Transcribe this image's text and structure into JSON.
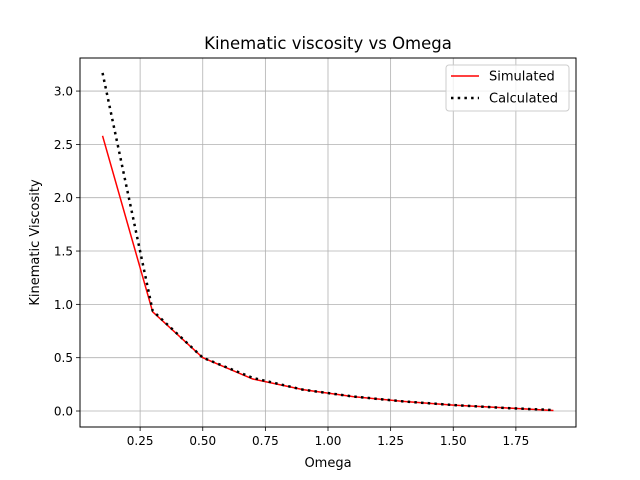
{
  "chart_data": {
    "type": "line",
    "title": "Kinematic viscosity vs Omega",
    "xlabel": "Omega",
    "ylabel": "Kinematic Viscosity",
    "xlim": [
      0.01,
      1.99
    ],
    "ylim": [
      -0.15,
      3.31
    ],
    "xticks": [
      0.25,
      0.5,
      0.75,
      1.0,
      1.25,
      1.5,
      1.75
    ],
    "xtick_labels": [
      "0.25",
      "0.50",
      "0.75",
      "1.00",
      "1.25",
      "1.50",
      "1.75"
    ],
    "yticks": [
      0.0,
      0.5,
      1.0,
      1.5,
      2.0,
      2.5,
      3.0
    ],
    "ytick_labels": [
      "0.0",
      "0.5",
      "1.0",
      "1.5",
      "2.0",
      "2.5",
      "3.0"
    ],
    "grid": true,
    "legend_position": "top-right",
    "series": [
      {
        "name": "Simulated",
        "color": "#ff0000",
        "style": "solid",
        "x": [
          0.1,
          0.3,
          0.5,
          0.7,
          0.9,
          1.1,
          1.3,
          1.5,
          1.7,
          1.9
        ],
        "y": [
          2.58,
          0.93,
          0.5,
          0.3,
          0.2,
          0.135,
          0.09,
          0.055,
          0.03,
          0.005
        ]
      },
      {
        "name": "Calculated",
        "color": "#000000",
        "style": "dotted",
        "x": [
          0.1,
          0.3,
          0.5,
          0.7,
          0.9,
          1.1,
          1.3,
          1.5,
          1.7,
          1.9
        ],
        "y": [
          3.17,
          0.94,
          0.5,
          0.31,
          0.2,
          0.136,
          0.09,
          0.056,
          0.029,
          0.0088
        ]
      }
    ]
  }
}
